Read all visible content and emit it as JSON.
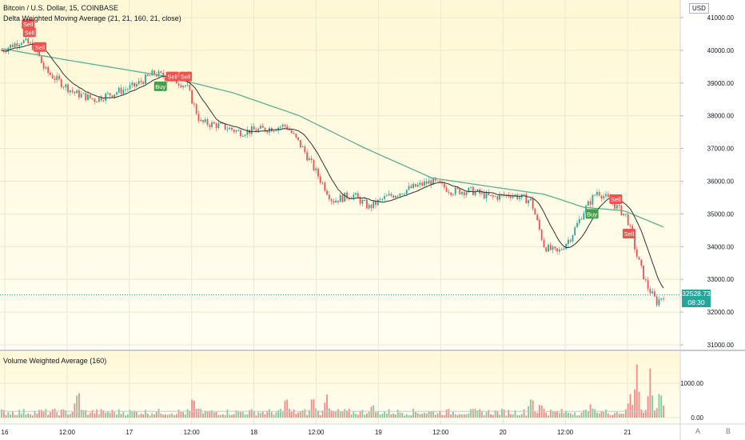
{
  "legend": {
    "symbol": "Bitcoin / U.S. Dollar, 15, COINBASE",
    "main_indicator": "Delta Weighted Moving Average (21, 21, 160, 21, close)",
    "volume_indicator": "Volume Weighted Average (160)"
  },
  "axis_currency": "USD",
  "last_price": {
    "value": "32528.73",
    "countdown": "08:30"
  },
  "buttons": {
    "auto": "A",
    "log": "B"
  },
  "colors": {
    "background_top": "#fff8d6",
    "background_bottom": "#fffef2",
    "up": "#26a69a",
    "down": "#ef5350",
    "slow_ma": "#5fae8e",
    "fast_ma": "#333333",
    "buy": "#43a047",
    "sell": "#ef5350"
  },
  "chart_data": [
    {
      "type": "candlestick",
      "price_axis": {
        "range": [
          31000,
          41000
        ],
        "ticks": [
          "41000.00",
          "40000.00",
          "39000.00",
          "38000.00",
          "37000.00",
          "36000.00",
          "35000.00",
          "34000.00",
          "33000.00",
          "32000.00",
          "31000.00"
        ]
      },
      "time_axis": {
        "ticks": [
          "16",
          "12:00",
          "17",
          "12:00",
          "18",
          "12:00",
          "19",
          "12:00",
          "20",
          "12:00",
          "21"
        ]
      },
      "close_anchors": [
        {
          "t": 0,
          "v": 40000
        },
        {
          "t": 0.03,
          "v": 40300
        },
        {
          "t": 0.05,
          "v": 40100
        },
        {
          "t": 0.065,
          "v": 39400
        },
        {
          "t": 0.09,
          "v": 39000
        },
        {
          "t": 0.11,
          "v": 38700
        },
        {
          "t": 0.14,
          "v": 38500
        },
        {
          "t": 0.17,
          "v": 38700
        },
        {
          "t": 0.2,
          "v": 38900
        },
        {
          "t": 0.23,
          "v": 39300
        },
        {
          "t": 0.26,
          "v": 39100
        },
        {
          "t": 0.28,
          "v": 38900
        },
        {
          "t": 0.3,
          "v": 37800
        },
        {
          "t": 0.33,
          "v": 37700
        },
        {
          "t": 0.36,
          "v": 37500
        },
        {
          "t": 0.4,
          "v": 37600
        },
        {
          "t": 0.43,
          "v": 37700
        },
        {
          "t": 0.455,
          "v": 37000
        },
        {
          "t": 0.48,
          "v": 36100
        },
        {
          "t": 0.5,
          "v": 35400
        },
        {
          "t": 0.53,
          "v": 35600
        },
        {
          "t": 0.555,
          "v": 35200
        },
        {
          "t": 0.58,
          "v": 35500
        },
        {
          "t": 0.62,
          "v": 35800
        },
        {
          "t": 0.65,
          "v": 36000
        },
        {
          "t": 0.68,
          "v": 35700
        },
        {
          "t": 0.71,
          "v": 35700
        },
        {
          "t": 0.74,
          "v": 35500
        },
        {
          "t": 0.77,
          "v": 35600
        },
        {
          "t": 0.8,
          "v": 35400
        },
        {
          "t": 0.82,
          "v": 34000
        },
        {
          "t": 0.84,
          "v": 33800
        },
        {
          "t": 0.86,
          "v": 34300
        },
        {
          "t": 0.88,
          "v": 35100
        },
        {
          "t": 0.9,
          "v": 35700
        },
        {
          "t": 0.925,
          "v": 35300
        },
        {
          "t": 0.945,
          "v": 34900
        },
        {
          "t": 0.96,
          "v": 33700
        },
        {
          "t": 0.975,
          "v": 32800
        },
        {
          "t": 0.99,
          "v": 32300
        },
        {
          "t": 1,
          "v": 32528.73
        }
      ],
      "slow_ma_anchors": [
        {
          "t": 0,
          "v": 40050
        },
        {
          "t": 0.1,
          "v": 39700
        },
        {
          "t": 0.25,
          "v": 39200
        },
        {
          "t": 0.35,
          "v": 38700
        },
        {
          "t": 0.45,
          "v": 38000
        },
        {
          "t": 0.55,
          "v": 37000
        },
        {
          "t": 0.65,
          "v": 36100
        },
        {
          "t": 0.75,
          "v": 35800
        },
        {
          "t": 0.82,
          "v": 35600
        },
        {
          "t": 0.88,
          "v": 35200
        },
        {
          "t": 0.94,
          "v": 35100
        },
        {
          "t": 1,
          "v": 34600
        }
      ],
      "signals": [
        {
          "label": "Sell",
          "t": 0.04,
          "price": 40800
        },
        {
          "label": "Sell",
          "t": 0.042,
          "price": 40550
        },
        {
          "label": "Sell",
          "t": 0.058,
          "price": 40100
        },
        {
          "label": "Buy",
          "t": 0.24,
          "price": 38900
        },
        {
          "label": "Sell",
          "t": 0.258,
          "price": 39200
        },
        {
          "label": "Sell",
          "t": 0.278,
          "price": 39200
        },
        {
          "label": "Buy",
          "t": 0.892,
          "price": 35000
        },
        {
          "label": "Sell",
          "t": 0.928,
          "price": 35450
        },
        {
          "label": "Sell",
          "t": 0.948,
          "price": 34400
        }
      ]
    },
    {
      "type": "bar",
      "title": "Volume Weighted Average (160)",
      "value_axis": {
        "range": [
          0,
          1500
        ],
        "ticks": [
          "1000.00",
          "0.00"
        ]
      },
      "average_level": 180,
      "spikes": [
        {
          "t": 0.115,
          "v": 1100
        },
        {
          "t": 0.29,
          "v": 800
        },
        {
          "t": 0.43,
          "v": 700
        },
        {
          "t": 0.47,
          "v": 750
        },
        {
          "t": 0.49,
          "v": 850
        },
        {
          "t": 0.56,
          "v": 500
        },
        {
          "t": 0.8,
          "v": 850
        },
        {
          "t": 0.815,
          "v": 650
        },
        {
          "t": 0.89,
          "v": 550
        },
        {
          "t": 0.95,
          "v": 950
        },
        {
          "t": 0.96,
          "v": 1700
        },
        {
          "t": 0.98,
          "v": 1450
        },
        {
          "t": 0.995,
          "v": 1000
        }
      ]
    }
  ]
}
